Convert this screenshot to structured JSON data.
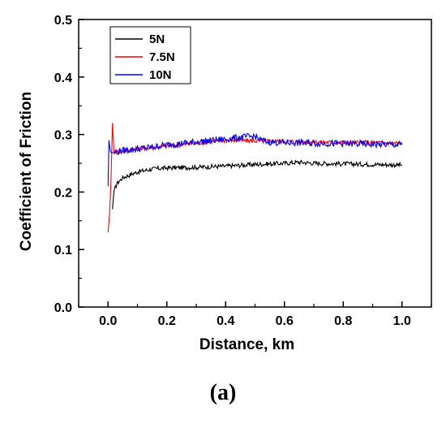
{
  "chart_data": {
    "type": "line",
    "title": "",
    "xlabel": "Distance, km",
    "ylabel": "Coefficient of Friction",
    "xlim": [
      -0.1,
      1.1
    ],
    "ylim": [
      0.0,
      0.5
    ],
    "xticks": [
      "0.0",
      "0.2",
      "0.4",
      "0.6",
      "0.8",
      "1.0"
    ],
    "yticks": [
      "0.0",
      "0.1",
      "0.2",
      "0.3",
      "0.4",
      "0.5"
    ],
    "grid": false,
    "legend_position": "top-left",
    "series": [
      {
        "name": "5N",
        "color": "#000000",
        "x": [
          0.015,
          0.02,
          0.03,
          0.05,
          0.1,
          0.15,
          0.2,
          0.3,
          0.4,
          0.5,
          0.6,
          0.65,
          0.7,
          0.8,
          0.9,
          1.0
        ],
        "y": [
          0.17,
          0.2,
          0.215,
          0.225,
          0.235,
          0.24,
          0.242,
          0.243,
          0.245,
          0.248,
          0.25,
          0.252,
          0.25,
          0.249,
          0.248,
          0.247
        ]
      },
      {
        "name": "7.5N",
        "color": "#ff0000",
        "x": [
          0.0,
          0.005,
          0.01,
          0.015,
          0.02,
          0.03,
          0.05,
          0.1,
          0.2,
          0.3,
          0.4,
          0.5,
          0.6,
          0.7,
          0.8,
          0.9,
          1.0
        ],
        "y": [
          0.13,
          0.16,
          0.22,
          0.32,
          0.27,
          0.27,
          0.272,
          0.275,
          0.28,
          0.285,
          0.29,
          0.289,
          0.288,
          0.287,
          0.286,
          0.286,
          0.285
        ]
      },
      {
        "name": "10N",
        "color": "#0000ff",
        "x": [
          0.0,
          0.003,
          0.008,
          0.015,
          0.03,
          0.05,
          0.1,
          0.15,
          0.2,
          0.3,
          0.4,
          0.45,
          0.5,
          0.52,
          0.55,
          0.6,
          0.7,
          0.8,
          0.9,
          1.0
        ],
        "y": [
          0.21,
          0.29,
          0.27,
          0.268,
          0.27,
          0.272,
          0.275,
          0.278,
          0.282,
          0.287,
          0.292,
          0.295,
          0.297,
          0.29,
          0.287,
          0.286,
          0.285,
          0.284,
          0.283,
          0.282
        ]
      }
    ]
  },
  "caption": "(a)"
}
